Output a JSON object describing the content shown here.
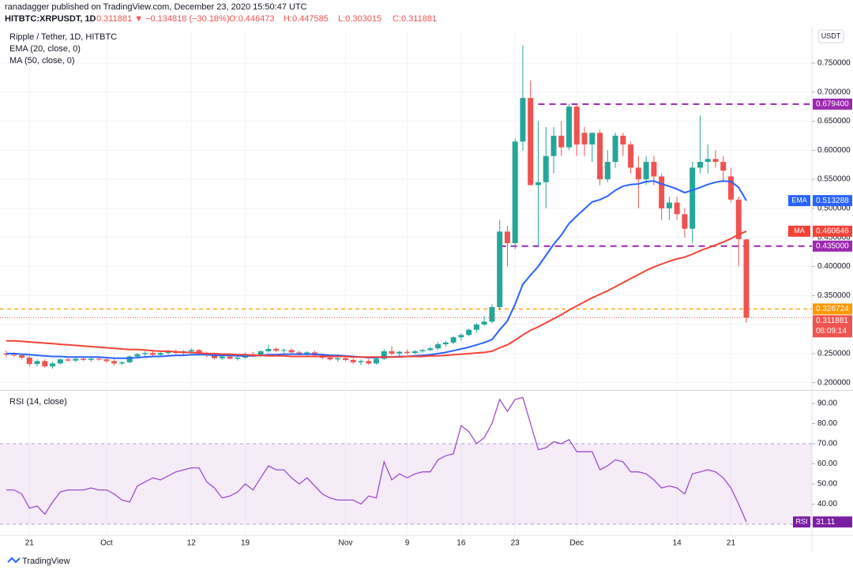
{
  "chart_data": {
    "type": "candlestick",
    "header": {
      "published": "ranadagger published on TradingView.com, December 23, 2020 15:50:47 UTC",
      "symbol": "HITBTC:XRPUSDT, 1D",
      "quote": "0.311881 ▼ −0.134818 (−30.18%)",
      "ohlc": [
        "O:0.446473",
        "H:0.447585",
        "L:0.303015",
        "C:0.311881"
      ]
    },
    "currency": "USDT",
    "categories": [
      null,
      null,
      null,
      "21",
      null,
      null,
      null,
      null,
      null,
      null,
      null,
      null,
      null,
      "Oct",
      null,
      null,
      null,
      null,
      null,
      null,
      null,
      null,
      null,
      null,
      "12",
      null,
      null,
      null,
      null,
      null,
      null,
      "19",
      null,
      null,
      null,
      null,
      null,
      null,
      null,
      null,
      null,
      null,
      null,
      null,
      "Nov",
      null,
      null,
      null,
      null,
      null,
      null,
      null,
      "9",
      null,
      null,
      null,
      null,
      null,
      null,
      "16",
      null,
      null,
      null,
      null,
      null,
      null,
      "23",
      null,
      null,
      null,
      null,
      null,
      null,
      null,
      "Dec",
      null,
      null,
      null,
      null,
      null,
      null,
      null,
      null,
      null,
      null,
      null,
      null,
      "14",
      null,
      null,
      null,
      null,
      null,
      null,
      "21",
      null,
      null
    ],
    "ylim": [
      0.19,
      0.807
    ],
    "yticks": [
      {
        "value": 0.2,
        "label": "0.200000"
      },
      {
        "value": 0.25,
        "label": "0.250000"
      },
      {
        "value": 0.3,
        "label": "0.300000"
      },
      {
        "value": 0.35,
        "label": "0.350000"
      },
      {
        "value": 0.4,
        "label": "0.400000"
      },
      {
        "value": 0.45,
        "label": "0.450000"
      },
      {
        "value": 0.5,
        "label": "0.500000"
      },
      {
        "value": 0.55,
        "label": "0.550000"
      },
      {
        "value": 0.6,
        "label": "0.600000"
      },
      {
        "value": 0.65,
        "label": "0.650000"
      },
      {
        "value": 0.7,
        "label": "0.700000"
      },
      {
        "value": 0.75,
        "label": "0.750000"
      }
    ],
    "grid": true,
    "candles": {
      "name": "Ripple / Tether, 1D, HITBTC",
      "up_color": "#26a69a",
      "down_color": "#ef5350",
      "open": [
        0.25,
        0.248,
        0.247,
        0.243,
        0.232,
        0.237,
        0.228,
        0.233,
        0.24,
        0.238,
        0.241,
        0.239,
        0.241,
        0.24,
        0.237,
        0.233,
        0.235,
        0.245,
        0.249,
        0.251,
        0.248,
        0.251,
        0.253,
        0.251,
        0.254,
        0.256,
        0.25,
        0.247,
        0.242,
        0.245,
        0.241,
        0.243,
        0.249,
        0.246,
        0.254,
        0.258,
        0.255,
        0.256,
        0.252,
        0.25,
        0.252,
        0.247,
        0.243,
        0.24,
        0.242,
        0.239,
        0.235,
        0.237,
        0.233,
        0.241,
        0.254,
        0.25,
        0.253,
        0.251,
        0.254,
        0.256,
        0.259,
        0.266,
        0.269,
        0.278,
        0.282,
        0.291,
        0.3,
        0.305,
        0.33,
        0.46,
        0.44,
        0.615,
        0.69,
        0.54,
        0.545,
        0.59,
        0.625,
        0.605,
        0.675,
        0.63,
        0.61,
        0.63,
        0.55,
        0.58,
        0.625,
        0.61,
        0.57,
        0.55,
        0.58,
        0.555,
        0.5,
        0.51,
        0.49,
        0.465,
        0.57,
        0.58,
        0.585,
        0.58,
        0.555,
        0.515,
        0.446473
      ],
      "high": [
        0.255,
        0.252,
        0.25,
        0.246,
        0.24,
        0.24,
        0.236,
        0.242,
        0.244,
        0.243,
        0.244,
        0.243,
        0.245,
        0.244,
        0.24,
        0.237,
        0.247,
        0.251,
        0.254,
        0.256,
        0.253,
        0.256,
        0.257,
        0.256,
        0.259,
        0.258,
        0.253,
        0.25,
        0.247,
        0.248,
        0.245,
        0.252,
        0.253,
        0.256,
        0.265,
        0.261,
        0.259,
        0.259,
        0.255,
        0.254,
        0.255,
        0.25,
        0.247,
        0.244,
        0.245,
        0.242,
        0.24,
        0.241,
        0.243,
        0.258,
        0.263,
        0.255,
        0.257,
        0.256,
        0.258,
        0.262,
        0.27,
        0.272,
        0.28,
        0.285,
        0.293,
        0.303,
        0.315,
        0.335,
        0.48,
        0.47,
        0.62,
        0.78,
        0.72,
        0.65,
        0.64,
        0.64,
        0.65,
        0.68,
        0.68,
        0.64,
        0.63,
        0.635,
        0.6,
        0.63,
        0.63,
        0.615,
        0.59,
        0.59,
        0.59,
        0.56,
        0.52,
        0.52,
        0.5,
        0.58,
        0.66,
        0.61,
        0.6,
        0.59,
        0.57,
        0.52,
        0.447585
      ],
      "low": [
        0.244,
        0.244,
        0.24,
        0.228,
        0.228,
        0.225,
        0.224,
        0.231,
        0.236,
        0.235,
        0.237,
        0.236,
        0.238,
        0.234,
        0.23,
        0.23,
        0.233,
        0.242,
        0.245,
        0.246,
        0.245,
        0.248,
        0.249,
        0.248,
        0.25,
        0.247,
        0.244,
        0.24,
        0.239,
        0.24,
        0.238,
        0.241,
        0.244,
        0.244,
        0.251,
        0.252,
        0.251,
        0.25,
        0.247,
        0.246,
        0.245,
        0.24,
        0.238,
        0.236,
        0.237,
        0.232,
        0.23,
        0.231,
        0.231,
        0.239,
        0.247,
        0.246,
        0.248,
        0.249,
        0.251,
        0.254,
        0.256,
        0.262,
        0.266,
        0.272,
        0.28,
        0.286,
        0.298,
        0.302,
        0.325,
        0.4,
        0.43,
        0.6,
        0.54,
        0.435,
        0.5,
        0.56,
        0.59,
        0.6,
        0.59,
        0.59,
        0.58,
        0.54,
        0.545,
        0.57,
        0.59,
        0.56,
        0.5,
        0.54,
        0.54,
        0.48,
        0.48,
        0.48,
        0.45,
        0.44,
        0.56,
        0.56,
        0.57,
        0.545,
        0.51,
        0.4,
        0.303015
      ],
      "close": [
        0.248,
        0.247,
        0.243,
        0.232,
        0.237,
        0.228,
        0.233,
        0.24,
        0.238,
        0.241,
        0.239,
        0.241,
        0.24,
        0.237,
        0.233,
        0.235,
        0.245,
        0.249,
        0.251,
        0.248,
        0.251,
        0.253,
        0.251,
        0.254,
        0.256,
        0.25,
        0.247,
        0.242,
        0.245,
        0.241,
        0.243,
        0.249,
        0.246,
        0.254,
        0.258,
        0.255,
        0.256,
        0.252,
        0.25,
        0.252,
        0.247,
        0.243,
        0.24,
        0.242,
        0.239,
        0.235,
        0.237,
        0.233,
        0.241,
        0.254,
        0.25,
        0.253,
        0.251,
        0.254,
        0.256,
        0.259,
        0.266,
        0.269,
        0.278,
        0.282,
        0.291,
        0.3,
        0.305,
        0.33,
        0.46,
        0.44,
        0.615,
        0.69,
        0.54,
        0.545,
        0.59,
        0.625,
        0.605,
        0.675,
        0.61,
        0.61,
        0.63,
        0.55,
        0.58,
        0.625,
        0.61,
        0.57,
        0.55,
        0.58,
        0.555,
        0.5,
        0.51,
        0.49,
        0.465,
        0.57,
        0.58,
        0.585,
        0.58,
        0.565,
        0.515,
        0.447,
        0.311881
      ]
    },
    "series": [
      {
        "name": "EMA (20, close, 0)",
        "tag": "EMA",
        "color": "#2962ff",
        "values": [
          0.25,
          0.25,
          0.249,
          0.248,
          0.247,
          0.246,
          0.245,
          0.245,
          0.244,
          0.244,
          0.244,
          0.244,
          0.244,
          0.243,
          0.242,
          0.242,
          0.242,
          0.243,
          0.244,
          0.245,
          0.245,
          0.246,
          0.247,
          0.247,
          0.248,
          0.248,
          0.248,
          0.247,
          0.247,
          0.247,
          0.246,
          0.246,
          0.246,
          0.247,
          0.248,
          0.248,
          0.249,
          0.249,
          0.249,
          0.249,
          0.249,
          0.248,
          0.247,
          0.247,
          0.246,
          0.245,
          0.244,
          0.243,
          0.243,
          0.244,
          0.244,
          0.245,
          0.245,
          0.246,
          0.247,
          0.248,
          0.25,
          0.252,
          0.255,
          0.258,
          0.261,
          0.265,
          0.269,
          0.274,
          0.291,
          0.306,
          0.335,
          0.369,
          0.385,
          0.4,
          0.419,
          0.438,
          0.454,
          0.474,
          0.487,
          0.499,
          0.511,
          0.515,
          0.521,
          0.531,
          0.538,
          0.541,
          0.542,
          0.546,
          0.547,
          0.542,
          0.538,
          0.533,
          0.527,
          0.531,
          0.536,
          0.541,
          0.545,
          0.547,
          0.546,
          0.536,
          0.513288
        ]
      },
      {
        "name": "MA (50, close, 0)",
        "tag": "MA",
        "color": "#f44336",
        "values": [
          0.272,
          0.272,
          0.271,
          0.27,
          0.269,
          0.268,
          0.267,
          0.266,
          0.265,
          0.264,
          0.263,
          0.262,
          0.261,
          0.26,
          0.259,
          0.258,
          0.257,
          0.257,
          0.256,
          0.255,
          0.254,
          0.254,
          0.253,
          0.252,
          0.252,
          0.251,
          0.25,
          0.25,
          0.249,
          0.249,
          0.248,
          0.248,
          0.247,
          0.247,
          0.246,
          0.246,
          0.246,
          0.245,
          0.245,
          0.245,
          0.245,
          0.245,
          0.245,
          0.245,
          0.245,
          0.244,
          0.244,
          0.244,
          0.244,
          0.244,
          0.244,
          0.244,
          0.245,
          0.245,
          0.245,
          0.246,
          0.246,
          0.247,
          0.248,
          0.249,
          0.25,
          0.251,
          0.252,
          0.254,
          0.26,
          0.265,
          0.273,
          0.282,
          0.29,
          0.296,
          0.303,
          0.31,
          0.317,
          0.325,
          0.332,
          0.339,
          0.346,
          0.352,
          0.358,
          0.365,
          0.372,
          0.379,
          0.386,
          0.393,
          0.399,
          0.404,
          0.409,
          0.413,
          0.416,
          0.421,
          0.427,
          0.432,
          0.437,
          0.442,
          0.448,
          0.455,
          0.460646
        ]
      }
    ],
    "levels": [
      {
        "value": 0.6794,
        "label": "0.679400",
        "color": "#9c27b0"
      },
      {
        "value": 0.435,
        "label": "0.435000",
        "color": "#9c27b0"
      },
      {
        "value": 0.326724,
        "label": "0.326724",
        "color": "#ff9800"
      }
    ],
    "countdown": "08:09:14",
    "rsi": {
      "name": "RSI (14, close)",
      "tag": "RSI",
      "color": "#9c4dcc",
      "ylim": [
        24.5,
        95.5
      ],
      "band": [
        30,
        70
      ],
      "yticks": [
        {
          "value": 40,
          "label": "40.00"
        },
        {
          "value": 50,
          "label": "50.00"
        },
        {
          "value": 60,
          "label": "60.00"
        },
        {
          "value": 70,
          "label": "70.00"
        },
        {
          "value": 80,
          "label": "80.00"
        },
        {
          "value": 90,
          "label": "90.00"
        }
      ],
      "values": [
        47,
        47,
        45,
        38,
        39,
        35,
        41,
        46,
        47,
        47,
        47,
        48,
        47,
        47,
        45,
        42,
        41,
        49,
        51,
        53,
        52,
        54,
        56,
        57,
        58,
        58,
        51,
        48,
        43,
        44,
        46,
        50,
        47,
        53,
        59,
        57,
        57,
        53,
        50,
        53,
        49,
        45,
        43,
        42,
        42,
        42,
        40,
        44,
        43,
        61,
        52,
        55,
        53,
        55,
        56,
        56,
        62,
        64,
        65,
        79,
        76,
        70,
        73,
        80,
        92,
        86,
        92,
        93,
        80,
        67,
        68,
        71,
        70,
        72,
        66,
        66,
        66,
        57,
        59,
        62,
        61,
        56,
        56,
        55,
        52,
        48,
        49,
        48,
        45,
        55,
        56,
        57,
        56,
        53,
        48,
        40,
        31.11
      ]
    },
    "footer": "TradingView"
  }
}
